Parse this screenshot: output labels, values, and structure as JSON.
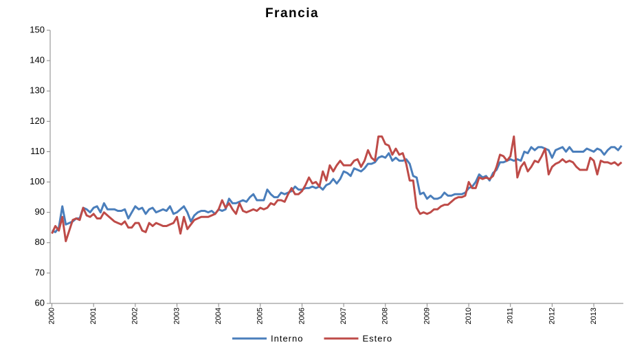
{
  "chart_data": {
    "type": "line",
    "title": "Francia",
    "categories": [
      "2000",
      null,
      null,
      null,
      null,
      null,
      null,
      null,
      null,
      null,
      null,
      null,
      "2001",
      null,
      null,
      null,
      null,
      null,
      null,
      null,
      null,
      null,
      null,
      null,
      "2002",
      null,
      null,
      null,
      null,
      null,
      null,
      null,
      null,
      null,
      null,
      null,
      "2003",
      null,
      null,
      null,
      null,
      null,
      null,
      null,
      null,
      null,
      null,
      null,
      "2004",
      null,
      null,
      null,
      null,
      null,
      null,
      null,
      null,
      null,
      null,
      null,
      "2005",
      null,
      null,
      null,
      null,
      null,
      null,
      null,
      null,
      null,
      null,
      null,
      "2006",
      null,
      null,
      null,
      null,
      null,
      null,
      null,
      null,
      null,
      null,
      null,
      "2007",
      null,
      null,
      null,
      null,
      null,
      null,
      null,
      null,
      null,
      null,
      null,
      "2008",
      null,
      null,
      null,
      null,
      null,
      null,
      null,
      null,
      null,
      null,
      null,
      "2009",
      null,
      null,
      null,
      null,
      null,
      null,
      null,
      null,
      null,
      null,
      null,
      "2010",
      null,
      null,
      null,
      null,
      null,
      null,
      null,
      null,
      null,
      null,
      null,
      "2011",
      null,
      null,
      null,
      null,
      null,
      null,
      null,
      null,
      null,
      null,
      null,
      "2012",
      null,
      null,
      null,
      null,
      null,
      null,
      null,
      null,
      null,
      null,
      null,
      "2013",
      null,
      null,
      null,
      null,
      null,
      null,
      null,
      null
    ],
    "series": [
      {
        "name": "Interno",
        "color": "#4a7ebb",
        "values": [
          84,
          83.5,
          85,
          92,
          86,
          86.5,
          87,
          88,
          88,
          91.5,
          91,
          90,
          91.5,
          92,
          90,
          93,
          91,
          91,
          91,
          90.5,
          90.5,
          91,
          88,
          90,
          92,
          91,
          91.5,
          89.5,
          91,
          91.5,
          90,
          90.5,
          91,
          90.5,
          92,
          89.5,
          90,
          91,
          92,
          90,
          87,
          89,
          90,
          90.5,
          90.5,
          90,
          90.5,
          89.5,
          91,
          90.5,
          91,
          94.5,
          93,
          93,
          93.5,
          94,
          93.5,
          95,
          96,
          94,
          94,
          94,
          97.5,
          96,
          95,
          95,
          96.5,
          96,
          96.5,
          97,
          98.5,
          97.5,
          97.5,
          98,
          98,
          98.5,
          98,
          98.5,
          97.5,
          99,
          99.5,
          101,
          99.5,
          101,
          103.5,
          103,
          102,
          104.5,
          104,
          103.5,
          104.5,
          106,
          106,
          106.5,
          108,
          108.5,
          108,
          109.5,
          107,
          108,
          107,
          107,
          107.5,
          106,
          102,
          101.5,
          96,
          96.5,
          94.5,
          95.5,
          94.5,
          94.5,
          95,
          96.5,
          95.5,
          95.5,
          96,
          96,
          96,
          96.5,
          98,
          98.5,
          100,
          102.5,
          101.5,
          102,
          100.5,
          103,
          104,
          106.5,
          106.5,
          107,
          107.5,
          107,
          107.5,
          107,
          110,
          109.5,
          111.5,
          110.5,
          111.5,
          111.5,
          111,
          110.5,
          108,
          110.5,
          111,
          111.5,
          110,
          111.5,
          110,
          110,
          110,
          110,
          111,
          110.5,
          110,
          111,
          110.5,
          109,
          110.5,
          111.5,
          111.5,
          110.5,
          112
        ]
      },
      {
        "name": "Estero",
        "color": "#be4b48",
        "values": [
          83,
          85.5,
          84,
          88.5,
          80.5,
          84,
          87.5,
          88,
          87.5,
          91.5,
          89,
          88.5,
          89.5,
          88,
          88,
          90,
          89,
          88,
          87,
          86.5,
          86,
          87,
          85,
          85,
          86.5,
          86.5,
          84,
          83.5,
          86.5,
          85.5,
          86.5,
          86,
          85.5,
          85.5,
          86,
          86.5,
          88.5,
          83,
          88.5,
          84.5,
          86,
          87.5,
          88,
          88.5,
          88.5,
          88.5,
          89,
          89.5,
          91,
          94,
          91.5,
          93,
          91,
          89.5,
          93,
          90.5,
          90,
          90.5,
          91,
          90.5,
          91.5,
          91,
          91.5,
          93,
          92.5,
          94,
          94,
          93.5,
          96,
          98,
          96,
          96,
          97,
          99,
          101.5,
          99.5,
          100,
          98.5,
          103.5,
          100.5,
          105.5,
          103.5,
          105.5,
          107,
          105.5,
          105.5,
          105.5,
          107,
          107.5,
          105,
          107,
          110.5,
          108,
          107,
          115,
          115,
          112.5,
          112,
          109,
          111,
          109,
          109.5,
          106,
          100.5,
          100.5,
          91.5,
          89.5,
          90,
          89.5,
          90,
          91,
          91,
          92,
          92.5,
          92.5,
          93.5,
          94.5,
          95,
          95,
          95.5,
          100,
          98,
          98,
          101.5,
          101,
          101.5,
          101,
          102,
          105,
          109,
          108.5,
          107,
          108.5,
          115,
          101.5,
          105,
          106.5,
          103.5,
          105,
          107,
          106.5,
          108.5,
          111,
          102.5,
          105,
          106,
          106.5,
          107.5,
          106.5,
          107,
          106.5,
          105,
          104,
          104,
          104,
          108,
          107,
          102.5,
          107,
          106.5,
          106.5,
          106,
          106.5,
          105.5,
          106.5
        ]
      }
    ],
    "ylim": [
      60,
      150
    ],
    "yticks": [
      60,
      70,
      80,
      90,
      100,
      110,
      120,
      130,
      140,
      150
    ],
    "grid": false,
    "legend": "bottom"
  }
}
